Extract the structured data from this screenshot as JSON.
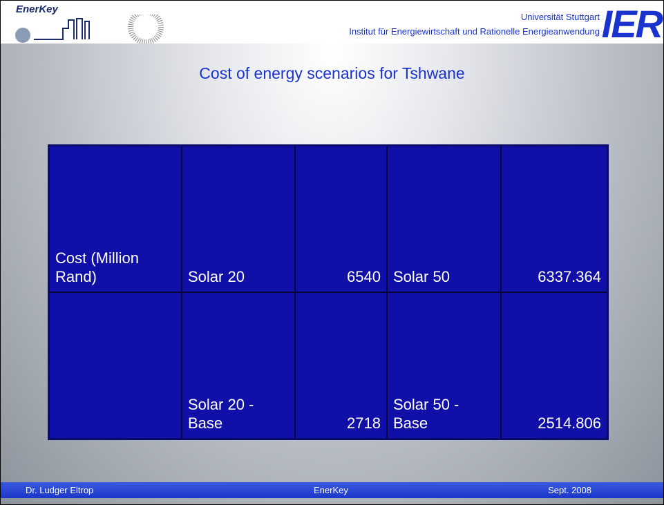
{
  "header": {
    "logo": "EnerKey",
    "university": "Universität Stuttgart",
    "institute": "Institut für Energiewirtschaft und Rationelle Energieanwendung",
    "brand": "IER"
  },
  "title": "Cost of energy scenarios for Tshwane",
  "table": {
    "rows": [
      [
        "Cost (Million Rand)",
        "Solar 20",
        6540,
        "Solar 50",
        6337.364
      ],
      [
        null,
        "Solar 20 - Base",
        2718,
        "Solar 50 - Base",
        2514.806
      ]
    ]
  },
  "footer": {
    "author": "Dr. Ludger Eltrop",
    "project": "EnerKey",
    "date": "Sept. 2008"
  }
}
